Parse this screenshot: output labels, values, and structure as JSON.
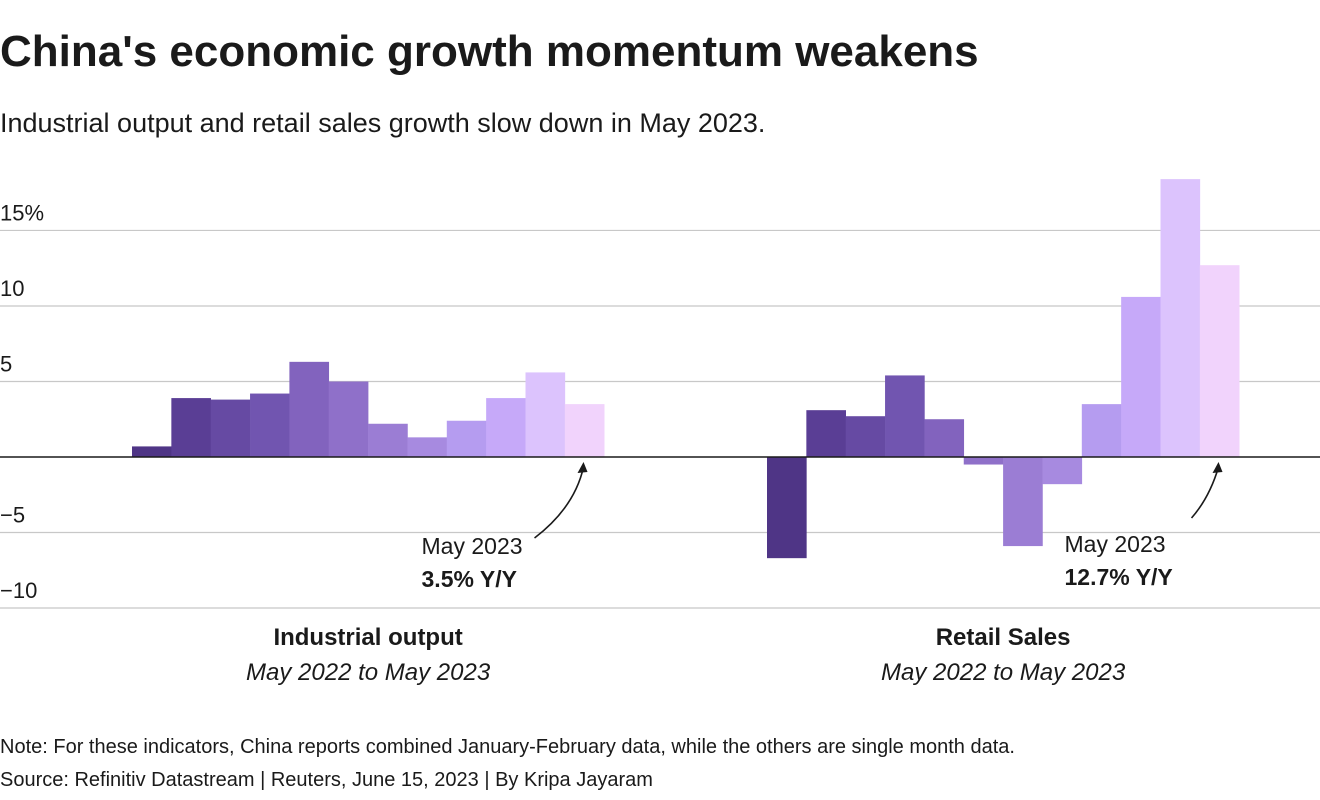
{
  "chart_data": {
    "type": "bar",
    "title": "China's economic growth momentum weakens",
    "subtitle": "Industrial output and retail sales growth slow down in May 2023.",
    "note": "Note: For these indicators, China reports combined January-February data, while the others are single month data.",
    "source": "Source: Refinitiv Datastream | Reuters, June 15, 2023 | By Kripa Jayaram",
    "ylim": [
      -10,
      18.5
    ],
    "yticks": [
      {
        "value": 15,
        "label": "15%"
      },
      10,
      5,
      {
        "value": -5,
        "label": "−5"
      },
      {
        "value": -10,
        "label": "−10"
      }
    ],
    "grid": true,
    "panels": [
      {
        "title": "Industrial output",
        "subtitle": "May 2022 to May 2023",
        "categories": [
          null,
          null,
          null,
          null,
          null,
          null,
          null,
          null,
          null,
          null,
          null,
          null
        ],
        "values": [
          0.7,
          3.9,
          3.8,
          4.2,
          6.3,
          5.0,
          2.2,
          1.3,
          2.4,
          3.9,
          5.6,
          3.5
        ],
        "colors": [
          "#4f3586",
          "#5a3e95",
          "#664aa3",
          "#7155b0",
          "#8263be",
          "#8f70c9",
          "#9b7dd4",
          "#a78ae0",
          "#b59cf0",
          "#c6a9f9",
          "#dcc3fd",
          "#f1d3fc"
        ],
        "annotation": "May 2023",
        "value_labels": [
          null,
          null,
          null,
          null,
          null,
          null,
          null,
          null,
          null,
          null,
          null,
          "3.5% Y/Y"
        ]
      },
      {
        "title": "Retail Sales",
        "subtitle": "May 2022 to May 2023",
        "categories": [
          null,
          null,
          null,
          null,
          null,
          null,
          null,
          null,
          null,
          null,
          null,
          null
        ],
        "values": [
          -6.7,
          3.1,
          2.7,
          5.4,
          2.5,
          -0.5,
          -5.9,
          -1.8,
          3.5,
          10.6,
          18.4,
          12.7
        ],
        "colors": [
          "#4f3586",
          "#5a3e95",
          "#664aa3",
          "#7155b0",
          "#8263be",
          "#8f70c9",
          "#9b7dd4",
          "#a78ae0",
          "#b59cf0",
          "#c6a9f9",
          "#dcc3fd",
          "#f1d3fc"
        ],
        "annotation": "May 2023",
        "value_labels": [
          null,
          null,
          null,
          null,
          null,
          null,
          null,
          null,
          null,
          null,
          null,
          "12.7% Y/Y"
        ]
      }
    ]
  }
}
